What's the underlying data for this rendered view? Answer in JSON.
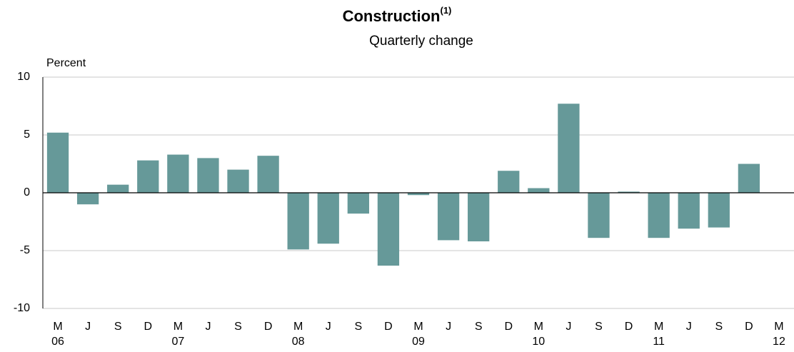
{
  "chart_data": {
    "type": "bar",
    "title": "Construction",
    "title_note": "(1)",
    "subtitle": "Quarterly change",
    "y_label": "Percent",
    "categories": [
      "M",
      "J",
      "S",
      "D",
      "M",
      "J",
      "S",
      "D",
      "M",
      "J",
      "S",
      "D",
      "M",
      "J",
      "S",
      "D",
      "M",
      "J",
      "S",
      "D",
      "M",
      "J",
      "S",
      "D",
      "M"
    ],
    "year_labels": [
      "06",
      null,
      null,
      null,
      "07",
      null,
      null,
      null,
      "08",
      null,
      null,
      null,
      "09",
      null,
      null,
      null,
      "10",
      null,
      null,
      null,
      "11",
      null,
      null,
      null,
      "12"
    ],
    "values": [
      5.2,
      -1.0,
      0.7,
      2.8,
      3.3,
      3.0,
      2.0,
      3.2,
      -4.9,
      -4.4,
      -1.8,
      -6.3,
      -0.2,
      -4.1,
      -4.2,
      1.9,
      0.4,
      7.7,
      -3.9,
      0.1,
      -3.9,
      -3.1,
      -3.0,
      2.5,
      null
    ],
    "color": "#669999",
    "ylim": [
      -10,
      10
    ],
    "yticks": [
      -10,
      -5,
      0,
      5,
      10
    ],
    "grid": true
  }
}
